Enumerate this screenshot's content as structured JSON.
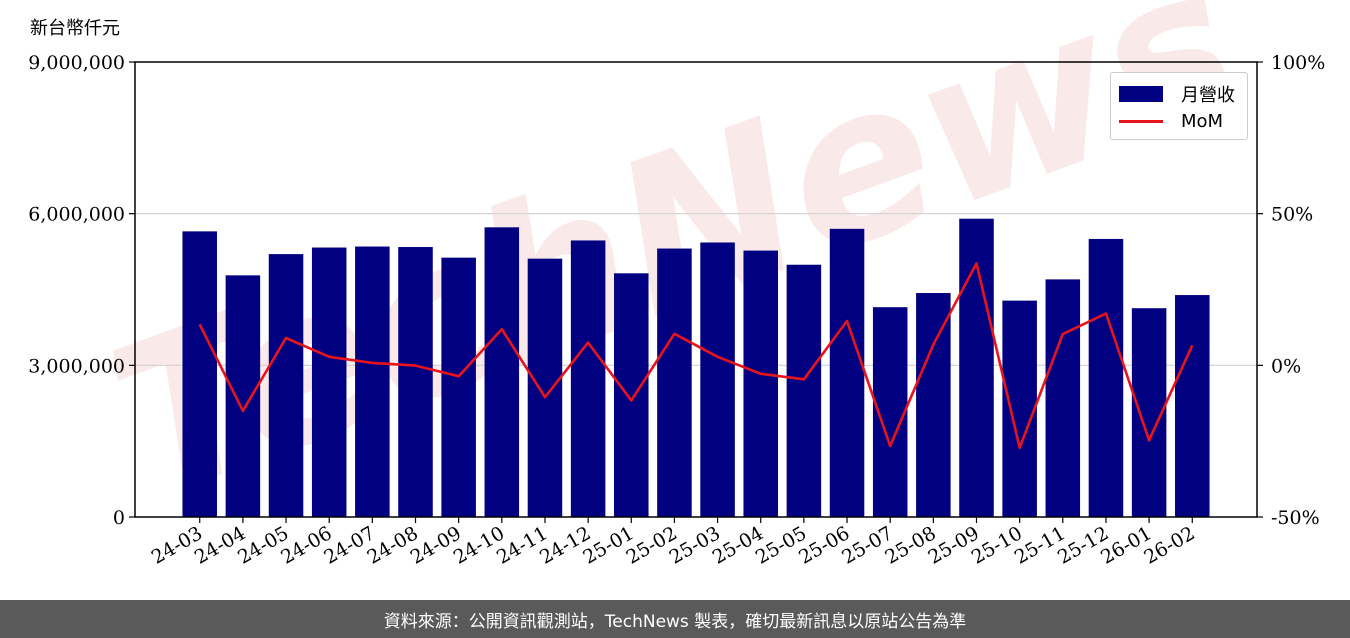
{
  "unit_label": "新台幣仟元",
  "watermark": "TechNews",
  "footer": "資料來源：公開資訊觀測站，TechNews 製表，確切最新訊息以原站公告為準",
  "colors": {
    "bar": "#000080",
    "line": "#e8141c",
    "footer_bg": "#5a5a5a"
  },
  "chart_data": {
    "type": "bar",
    "categories": [
      "24-03",
      "24-04",
      "24-05",
      "24-06",
      "24-07",
      "24-08",
      "24-09",
      "24-10",
      "24-11",
      "24-12",
      "25-01",
      "25-02",
      "25-03",
      "25-04",
      "25-05",
      "25-06",
      "25-07",
      "25-08",
      "25-09",
      "25-10",
      "25-11",
      "25-12",
      "26-01",
      "26-02"
    ],
    "series": [
      {
        "name": "月營收",
        "type": "bar",
        "axis": "left",
        "values": [
          5650000,
          4780000,
          5200000,
          5330000,
          5350000,
          5340000,
          5130000,
          5730000,
          5110000,
          5470000,
          4820000,
          5310000,
          5430000,
          5270000,
          4990000,
          5700000,
          4150000,
          4430000,
          5900000,
          4280000,
          4700000,
          5500000,
          4130000,
          4390000
        ]
      },
      {
        "name": "MoM",
        "type": "line",
        "axis": "right",
        "values": [
          13.5,
          -15.0,
          9.0,
          2.8,
          0.8,
          -0.1,
          -3.6,
          11.9,
          -10.5,
          7.5,
          -11.6,
          10.4,
          2.8,
          -2.8,
          -4.6,
          14.6,
          -26.6,
          6.8,
          33.6,
          -27.2,
          10.3,
          17.1,
          -24.7,
          6.6
        ]
      }
    ],
    "y_left": {
      "ylim": [
        0,
        9000000
      ],
      "ticks": [
        "0",
        "3,000,000",
        "6,000,000",
        "9,000,000"
      ],
      "tick_values": [
        0,
        3000000,
        6000000,
        9000000
      ]
    },
    "y_right": {
      "ylim": [
        -50,
        100
      ],
      "ticks": [
        "-50%",
        "0%",
        "50%",
        "100%"
      ],
      "tick_values": [
        -50,
        0,
        50,
        100
      ]
    },
    "grid": "horizontal",
    "legend": "top-right"
  }
}
